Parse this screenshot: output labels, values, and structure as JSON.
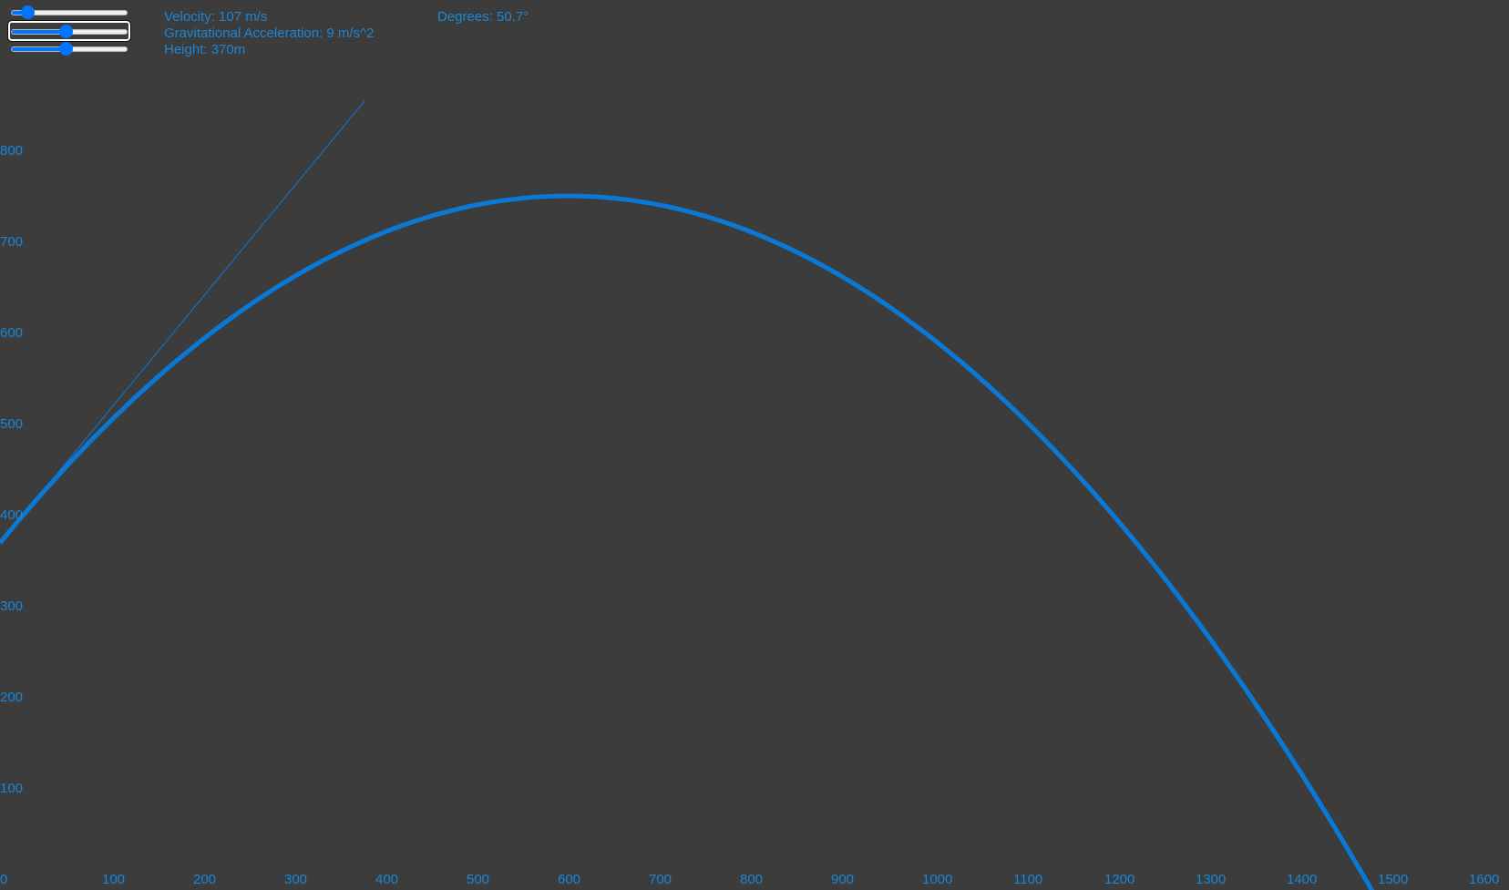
{
  "controls": {
    "velocity": {
      "label": "Velocity: 107 m/s",
      "slider_fraction": 0.14
    },
    "gravity": {
      "label": "Gravitational Acceleration: 9 m/s^2",
      "slider_fraction": 0.47
    },
    "height": {
      "label": "Height: 370m",
      "slider_fraction": 0.47
    },
    "degrees": {
      "label": "Degrees: 50.7°"
    }
  },
  "colors": {
    "background": "#3c3c3c",
    "accent": "#0a78d6",
    "text": "#1a86d8",
    "slider_track": "#efefef"
  },
  "chart_data": {
    "type": "line",
    "x_ticks": [
      "0",
      "100",
      "200",
      "300",
      "400",
      "500",
      "600",
      "700",
      "800",
      "900",
      "1000",
      "1100",
      "1200",
      "1300",
      "1400",
      "1500",
      "1600"
    ],
    "y_ticks": [
      "100",
      "200",
      "300",
      "400",
      "500",
      "600",
      "700",
      "800"
    ],
    "xlim": [
      0,
      1650
    ],
    "ylim": [
      0,
      850
    ],
    "trajectory": {
      "velocity": 107,
      "gravity": 9,
      "height": 370,
      "degrees": 50.7
    },
    "aim_line": {
      "x_end": 400,
      "y_end": 855
    }
  }
}
